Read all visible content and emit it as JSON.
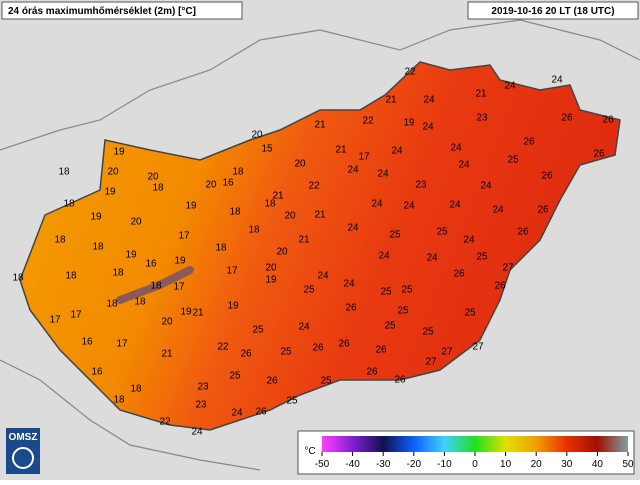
{
  "header": {
    "title": "24 órás maximumhőmérséklet (2m) [°C]",
    "timestamp": "2019-10-16 20 LT (18 UTC)"
  },
  "logo": "OMSZ",
  "stations": [
    22,
    21,
    24,
    21,
    24,
    24,
    21,
    22,
    19,
    24,
    23,
    26,
    26,
    20,
    15,
    21,
    17,
    24,
    24,
    26,
    18,
    19,
    20,
    20,
    18,
    16,
    20,
    20,
    24,
    24,
    24,
    25,
    26,
    22,
    23,
    24,
    26,
    19,
    18,
    21,
    18,
    18,
    19,
    18,
    20,
    21,
    24,
    24,
    24,
    24,
    26,
    19,
    20,
    24,
    25,
    24,
    26,
    18,
    17,
    18,
    21,
    25,
    18,
    20,
    24,
    24,
    25,
    18,
    19,
    16,
    19,
    20,
    17,
    24,
    24,
    26,
    27,
    18,
    18,
    17,
    19,
    25,
    25,
    25,
    26,
    18,
    18,
    18,
    18,
    19,
    19,
    26,
    25,
    25,
    17,
    17,
    20,
    21,
    24,
    25,
    25,
    25,
    16,
    17,
    22,
    26,
    26,
    25,
    26,
    26,
    27,
    27,
    21,
    16,
    25,
    26,
    25,
    26,
    26,
    27,
    18,
    23,
    18,
    23,
    25,
    26,
    24,
    22,
    24
  ],
  "colorbar": {
    "unit": "°C",
    "ticks": [
      -50,
      -40,
      -30,
      -20,
      -10,
      0,
      10,
      20,
      30,
      40,
      50
    ]
  }
}
